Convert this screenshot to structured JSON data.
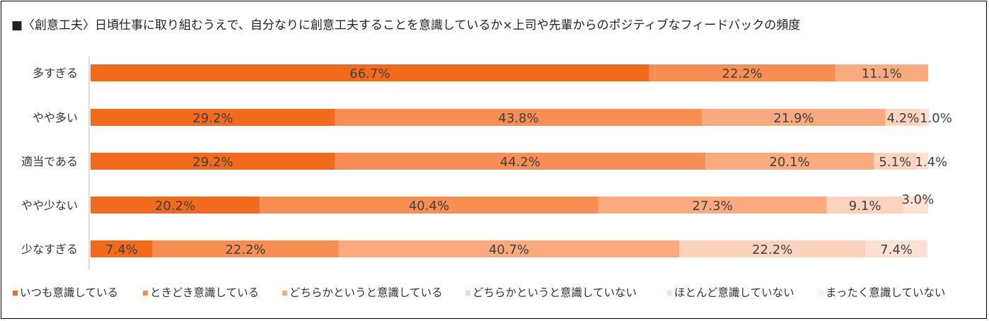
{
  "chart_data": {
    "type": "bar",
    "orientation": "horizontal",
    "stacked": true,
    "title": "■〈創意工夫〉日頃仕事に取り組むうえで、自分なりに創意工夫することを意識しているか×上司や先輩からのポジティブなフィードバックの頻度",
    "xlabel": "",
    "ylabel": "",
    "xlim": [
      0,
      100
    ],
    "grid": false,
    "legend_position": "bottom",
    "categories": [
      "多すぎる",
      "やや多い",
      "適当である",
      "やや少ない",
      "少なすぎる"
    ],
    "series": [
      {
        "name": "いつも意識している",
        "color": "#f26a1b",
        "values": [
          66.7,
          29.2,
          29.2,
          20.2,
          7.4
        ],
        "labels": [
          "66.7%",
          "29.2%",
          "29.2%",
          "20.2%",
          "7.4%"
        ]
      },
      {
        "name": "ときどき意識している",
        "color": "#f78e53",
        "values": [
          22.2,
          43.8,
          44.2,
          40.4,
          22.2
        ],
        "labels": [
          "22.2%",
          "43.8%",
          "44.2%",
          "40.4%",
          "22.2%"
        ]
      },
      {
        "name": "どちらかというと意識している",
        "color": "#f9ab7f",
        "values": [
          11.1,
          21.9,
          20.1,
          27.3,
          40.7
        ],
        "labels": [
          "11.1%",
          "21.9%",
          "20.1%",
          "27.3%",
          "40.7%"
        ]
      },
      {
        "name": "どちらかというと意識していない",
        "color": "#fcd3bd",
        "values": [
          0,
          4.2,
          5.1,
          9.1,
          22.2
        ],
        "labels": [
          "",
          "4.2%",
          "5.1%",
          "9.1%",
          "22.2%"
        ]
      },
      {
        "name": "ほとんど意識していない",
        "color": "#fde2d3",
        "values": [
          0,
          1.0,
          1.4,
          3.0,
          7.4
        ],
        "labels": [
          "",
          "1.0%",
          "1.4%",
          "3.0%",
          "7.4%"
        ]
      },
      {
        "name": "まったく意識していない",
        "color": "#fef0e8",
        "values": [
          0,
          0,
          0,
          0,
          0
        ],
        "labels": [
          "",
          "",
          "",
          "",
          ""
        ]
      }
    ]
  }
}
